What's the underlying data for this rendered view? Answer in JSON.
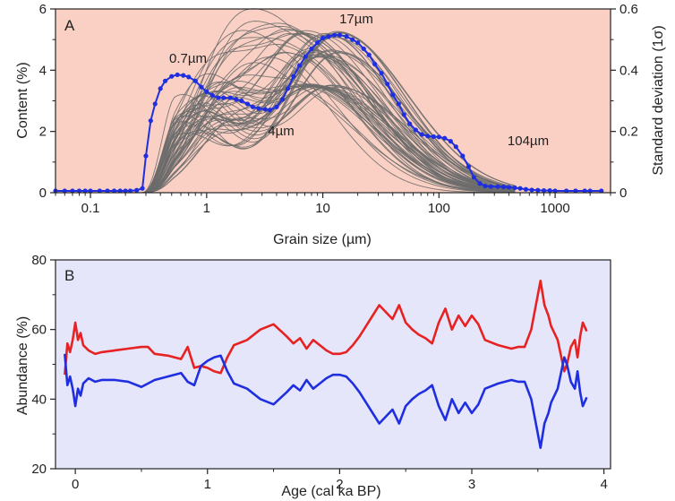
{
  "colors": {
    "panelA_bg": "#f9d0c3",
    "panelB_bg": "#e6e6fb",
    "grey_curves": "#6b6b6b",
    "std_line": "#1f2fe0",
    "red_line": "#e62222",
    "blue_line": "#1f2fe0"
  },
  "chart_data": [
    {
      "id": "A",
      "type": "line",
      "panel_label": "A",
      "xscale": "log",
      "xlim": [
        0.05,
        3000
      ],
      "ylim": [
        0,
        6
      ],
      "y2lim": [
        0,
        0.6
      ],
      "xlabel": "Grain size (µm)",
      "ylabel": "Content (%)",
      "y2label": "Standard deviation (1σ)",
      "xticks": [
        0.1,
        1,
        10,
        100,
        1000
      ],
      "xtick_labels": [
        "0.1",
        "1",
        "10",
        "100",
        "1000"
      ],
      "yticks": [
        0,
        2,
        4,
        6
      ],
      "ytick_labels": [
        "0",
        "2",
        "4",
        "6"
      ],
      "y2ticks": [
        0,
        0.2,
        0.4,
        0.6
      ],
      "y2tick_labels": [
        "0",
        "0.2",
        "0.4",
        "0.6"
      ],
      "grey_series": {
        "description": "many grain-size distribution curves (content %)",
        "count": 60,
        "onset": 0.28,
        "shoulder_um": [
          0.55,
          1.6
        ],
        "peak_um": [
          3.5,
          14
        ],
        "peak_pct": [
          3.4,
          5.4
        ],
        "tail_end_um": [
          150,
          450
        ]
      },
      "std_series": {
        "name": "Standard deviation",
        "axis": "right",
        "x": [
          0.05,
          0.06,
          0.07,
          0.08,
          0.09,
          0.1,
          0.12,
          0.14,
          0.16,
          0.18,
          0.2,
          0.22,
          0.25,
          0.28,
          0.3,
          0.33,
          0.36,
          0.4,
          0.44,
          0.5,
          0.56,
          0.63,
          0.7,
          0.8,
          0.9,
          1.0,
          1.12,
          1.26,
          1.4,
          1.6,
          1.8,
          2.0,
          2.25,
          2.5,
          2.8,
          3.2,
          3.5,
          4.0,
          4.5,
          5.0,
          5.6,
          6.3,
          7.1,
          8.0,
          9.0,
          10,
          11.2,
          12.6,
          14,
          16,
          18,
          20,
          22.5,
          25,
          28,
          32,
          36,
          40,
          45,
          50,
          56,
          63,
          71,
          80,
          90,
          100,
          112,
          126,
          140,
          160,
          180,
          200,
          225,
          250,
          280,
          320,
          360,
          400,
          450,
          500,
          560,
          630,
          710,
          800,
          900,
          1000,
          1250,
          1500,
          1800,
          2000,
          2500
        ],
        "values": [
          0.006,
          0.006,
          0.006,
          0.006,
          0.006,
          0.006,
          0.006,
          0.006,
          0.006,
          0.006,
          0.006,
          0.006,
          0.008,
          0.014,
          0.12,
          0.235,
          0.29,
          0.34,
          0.365,
          0.38,
          0.385,
          0.383,
          0.378,
          0.365,
          0.345,
          0.33,
          0.318,
          0.31,
          0.31,
          0.31,
          0.305,
          0.3,
          0.29,
          0.28,
          0.275,
          0.272,
          0.27,
          0.28,
          0.305,
          0.34,
          0.38,
          0.415,
          0.445,
          0.47,
          0.49,
          0.505,
          0.51,
          0.515,
          0.515,
          0.51,
          0.5,
          0.49,
          0.47,
          0.45,
          0.42,
          0.39,
          0.355,
          0.32,
          0.29,
          0.255,
          0.225,
          0.205,
          0.19,
          0.185,
          0.183,
          0.182,
          0.178,
          0.168,
          0.15,
          0.12,
          0.085,
          0.05,
          0.03,
          0.022,
          0.02,
          0.02,
          0.019,
          0.018,
          0.016,
          0.014,
          0.011,
          0.009,
          0.008,
          0.007,
          0.007,
          0.006,
          0.006,
          0.006,
          0.006,
          0.006,
          0.006
        ]
      },
      "annotations": [
        {
          "text": "0.7µm"
        },
        {
          "text": "4µm"
        },
        {
          "text": "17µm"
        },
        {
          "text": "104µm"
        }
      ]
    },
    {
      "id": "B",
      "type": "line",
      "panel_label": "B",
      "xlim": [
        -0.15,
        4.05
      ],
      "ylim": [
        20,
        80
      ],
      "xlabel": "Age (cal ka BP)",
      "ylabel": "Abundance (%)",
      "xticks": [
        0,
        1,
        2,
        3,
        4
      ],
      "xtick_labels": [
        "0",
        "1",
        "2",
        "3",
        "4"
      ],
      "yticks": [
        20,
        40,
        60,
        80
      ],
      "ytick_labels": [
        "20",
        "40",
        "60",
        "80"
      ],
      "x": [
        -0.08,
        -0.06,
        -0.04,
        -0.02,
        0.0,
        0.02,
        0.04,
        0.06,
        0.1,
        0.15,
        0.2,
        0.3,
        0.4,
        0.5,
        0.55,
        0.6,
        0.7,
        0.8,
        0.85,
        0.9,
        0.95,
        1.0,
        1.05,
        1.1,
        1.15,
        1.2,
        1.3,
        1.4,
        1.5,
        1.6,
        1.65,
        1.7,
        1.75,
        1.8,
        1.85,
        1.9,
        1.95,
        2.0,
        2.05,
        2.1,
        2.15,
        2.2,
        2.25,
        2.3,
        2.35,
        2.4,
        2.45,
        2.5,
        2.55,
        2.6,
        2.65,
        2.7,
        2.75,
        2.8,
        2.85,
        2.9,
        2.95,
        3.0,
        3.05,
        3.1,
        3.2,
        3.3,
        3.35,
        3.4,
        3.45,
        3.48,
        3.5,
        3.52,
        3.55,
        3.58,
        3.6,
        3.65,
        3.7,
        3.72,
        3.75,
        3.78,
        3.8,
        3.82,
        3.84,
        3.87
      ],
      "series": [
        {
          "name": "red",
          "color": "#e62222",
          "values": [
            47.0,
            56.0,
            53.5,
            57.0,
            62.0,
            57.0,
            59.0,
            55.5,
            54.0,
            53.0,
            53.5,
            54.0,
            54.5,
            55.0,
            55.0,
            53.0,
            52.5,
            51.5,
            55.0,
            49.0,
            49.5,
            49.0,
            48.0,
            47.5,
            52.0,
            55.5,
            57.0,
            60.0,
            61.5,
            58.0,
            56.0,
            57.5,
            54.5,
            57.0,
            55.5,
            54.0,
            53.0,
            53.0,
            53.5,
            55.5,
            58.0,
            61.0,
            64.0,
            67.0,
            65.0,
            63.0,
            67.0,
            62.0,
            60.0,
            58.5,
            57.5,
            56.0,
            62.0,
            66.0,
            60.0,
            64.0,
            61.0,
            64.0,
            61.5,
            57.0,
            55.5,
            54.5,
            55.0,
            55.0,
            60.0,
            66.0,
            70.0,
            74.0,
            67.0,
            64.0,
            61.0,
            57.0,
            48.0,
            50.0,
            55.0,
            57.0,
            52.0,
            58.0,
            62.0,
            59.5
          ]
        },
        {
          "name": "blue",
          "color": "#1f2fe0",
          "values": [
            53.0,
            44.0,
            46.5,
            43.0,
            38.0,
            43.0,
            41.0,
            44.5,
            46.0,
            45.0,
            45.5,
            45.5,
            45.0,
            43.5,
            44.5,
            45.5,
            46.5,
            47.5,
            45.0,
            44.0,
            49.5,
            51.0,
            52.0,
            52.5,
            48.0,
            44.5,
            43.0,
            40.0,
            38.5,
            42.0,
            44.0,
            42.5,
            45.5,
            43.0,
            44.5,
            46.0,
            47.0,
            47.0,
            46.5,
            44.5,
            42.0,
            39.0,
            36.0,
            33.0,
            35.0,
            37.0,
            33.0,
            38.0,
            40.0,
            41.5,
            42.5,
            44.0,
            38.0,
            34.0,
            40.0,
            36.0,
            39.0,
            36.0,
            38.5,
            43.0,
            44.5,
            45.5,
            45.0,
            45.0,
            40.0,
            34.0,
            30.0,
            26.0,
            33.0,
            36.0,
            39.0,
            43.0,
            52.0,
            50.0,
            45.0,
            43.0,
            48.0,
            42.0,
            38.0,
            40.5
          ]
        }
      ]
    }
  ]
}
